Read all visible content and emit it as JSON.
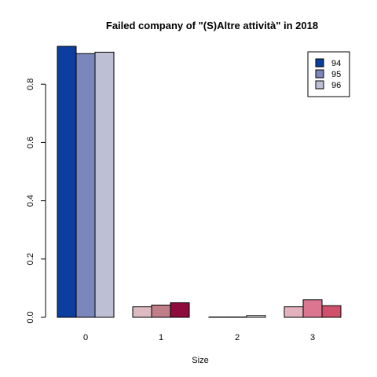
{
  "chart_data": {
    "type": "bar",
    "title": "Failed company of  \"(S)Altre attività\" in 2018",
    "xlabel": "Size",
    "ylabel": "",
    "categories": [
      "0",
      "1",
      "2",
      "3"
    ],
    "ylim": [
      0,
      0.93
    ],
    "yticks": [
      "0.0",
      "0.2",
      "0.4",
      "0.6",
      "0.8"
    ],
    "legend_position": "top-right",
    "series": [
      {
        "name": "94",
        "values": [
          0.93,
          0.036,
          0.001,
          0.036
        ]
      },
      {
        "name": "95",
        "values": [
          0.905,
          0.042,
          0.001,
          0.06
        ]
      },
      {
        "name": "96",
        "values": [
          0.91,
          0.05,
          0.006,
          0.04
        ]
      }
    ],
    "legend_colors": [
      "#0b3e9e",
      "#7b86bc",
      "#bdbfd4"
    ],
    "bar_colors": [
      [
        "#0b3e9e",
        "#7b86bc",
        "#bdbfd4"
      ],
      [
        "#dcbcc2",
        "#c07e88",
        "#8e0c3c"
      ],
      [
        "#ffffff",
        "#ffffff",
        "#ffffff"
      ],
      [
        "#e4b2bc",
        "#dc7690",
        "#d0506c"
      ]
    ]
  }
}
